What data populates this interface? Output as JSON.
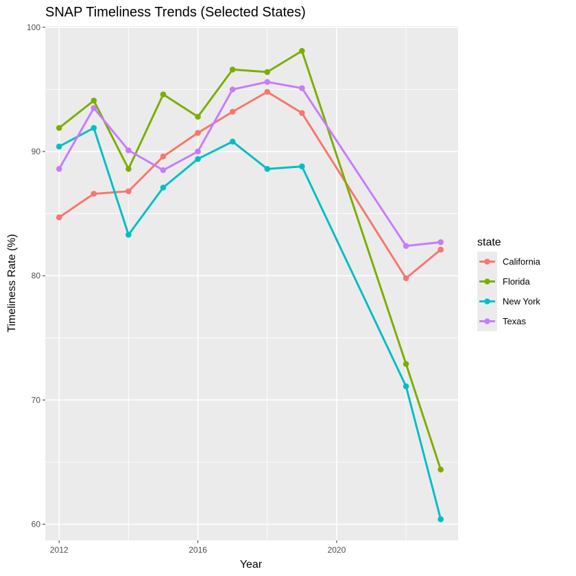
{
  "chart_data": {
    "type": "line",
    "title": "SNAP Timeliness Trends (Selected States)",
    "xlabel": "Year",
    "ylabel": "Timeliness Rate (%)",
    "xlim": [
      2011.6,
      2023.5
    ],
    "ylim": [
      58.7,
      100.1
    ],
    "x_ticks": [
      2012,
      2016,
      2020
    ],
    "y_ticks": [
      60,
      70,
      80,
      90,
      100
    ],
    "grid": true,
    "panel_background": "#EBEBEB",
    "grid_color": "#FFFFFF",
    "legend": {
      "title": "state",
      "position": "right"
    },
    "series": [
      {
        "name": "California",
        "color": "#F8766D",
        "x": [
          2012,
          2013,
          2014,
          2015,
          2016,
          2017,
          2018,
          2019,
          2022,
          2023
        ],
        "values": [
          84.7,
          86.6,
          86.8,
          89.6,
          91.5,
          93.2,
          94.8,
          93.1,
          79.8,
          82.1
        ]
      },
      {
        "name": "Florida",
        "color": "#7CAE00",
        "x": [
          2012,
          2013,
          2014,
          2015,
          2016,
          2017,
          2018,
          2019,
          2022,
          2023
        ],
        "values": [
          91.9,
          94.1,
          88.6,
          94.6,
          92.8,
          96.6,
          96.4,
          98.1,
          72.9,
          64.4
        ]
      },
      {
        "name": "New York",
        "color": "#00BFC4",
        "x": [
          2012,
          2013,
          2014,
          2015,
          2016,
          2017,
          2018,
          2019,
          2022,
          2023
        ],
        "values": [
          90.4,
          91.9,
          83.3,
          87.1,
          89.4,
          90.8,
          88.6,
          88.8,
          71.1,
          60.4
        ]
      },
      {
        "name": "Texas",
        "color": "#C77CFF",
        "x": [
          2012,
          2013,
          2014,
          2015,
          2016,
          2017,
          2018,
          2019,
          2022,
          2023
        ],
        "values": [
          88.6,
          93.5,
          90.1,
          88.5,
          90.0,
          95.0,
          95.6,
          95.1,
          82.4,
          82.7
        ]
      }
    ]
  }
}
